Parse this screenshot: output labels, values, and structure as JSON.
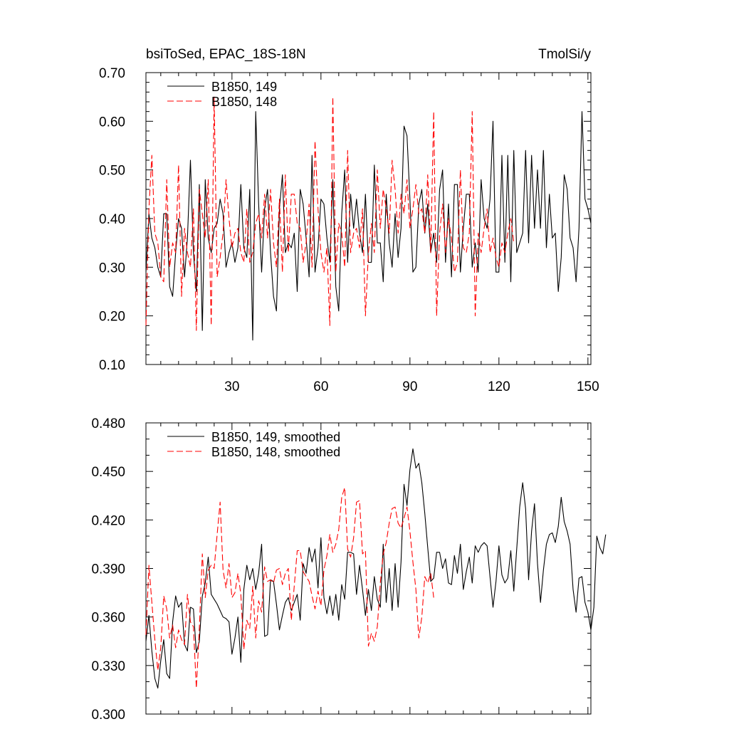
{
  "page": {
    "title_left": "bsiToSed, EPAC_18S-18N",
    "title_right": "TmolSi/y"
  },
  "colors": {
    "series1": "#000000",
    "series2": "#ff0000"
  },
  "chart_data": [
    {
      "type": "line",
      "title": "bsiToSed, EPAC_18S-18N",
      "units_label": "TmolSi/y",
      "xlabel": "",
      "ylabel": "",
      "xlim": [
        1,
        151
      ],
      "ylim": [
        0.1,
        0.7
      ],
      "x_ticks": [
        30,
        60,
        90,
        120,
        150
      ],
      "x_tick_labels": [
        "30",
        "60",
        "90",
        "120",
        "150"
      ],
      "y_ticks": [
        0.1,
        0.2,
        0.3,
        0.4,
        0.5,
        0.6,
        0.7
      ],
      "y_tick_labels": [
        "0.10",
        "0.20",
        "0.30",
        "0.40",
        "0.50",
        "0.60",
        "0.70"
      ],
      "legend": "top-left",
      "series": [
        {
          "name": "B1850, 149",
          "color": "#000000",
          "dash": "solid",
          "x_start": 1,
          "values": [
            0.29,
            0.41,
            0.36,
            0.34,
            0.3,
            0.28,
            0.41,
            0.41,
            0.26,
            0.24,
            0.33,
            0.4,
            0.38,
            0.28,
            0.36,
            0.52,
            0.33,
            0.25,
            0.47,
            0.17,
            0.48,
            0.36,
            0.33,
            0.38,
            0.39,
            0.44,
            0.41,
            0.3,
            0.33,
            0.35,
            0.31,
            0.34,
            0.47,
            0.34,
            0.32,
            0.46,
            0.15,
            0.62,
            0.43,
            0.29,
            0.42,
            0.46,
            0.33,
            0.24,
            0.21,
            0.42,
            0.49,
            0.33,
            0.35,
            0.34,
            0.37,
            0.25,
            0.46,
            0.43,
            0.36,
            0.28,
            0.53,
            0.29,
            0.34,
            0.44,
            0.43,
            0.36,
            0.31,
            0.48,
            0.26,
            0.21,
            0.41,
            0.5,
            0.31,
            0.45,
            0.38,
            0.44,
            0.37,
            0.33,
            0.45,
            0.31,
            0.31,
            0.51,
            0.35,
            0.35,
            0.27,
            0.45,
            0.35,
            0.3,
            0.41,
            0.32,
            0.38,
            0.59,
            0.57,
            0.44,
            0.29,
            0.3,
            0.43,
            0.46,
            0.37,
            0.43,
            0.33,
            0.37,
            0.31,
            0.46,
            0.5,
            0.31,
            0.43,
            0.28,
            0.47,
            0.47,
            0.29,
            0.38,
            0.45,
            0.45,
            0.3,
            0.35,
            0.29,
            0.48,
            0.4,
            0.38,
            0.44,
            0.6,
            0.29,
            0.29,
            0.53,
            0.31,
            0.53,
            0.27,
            0.54,
            0.33,
            0.35,
            0.37,
            0.54,
            0.35,
            0.53,
            0.38,
            0.5,
            0.38,
            0.54,
            0.34,
            0.45,
            0.36,
            0.37,
            0.25,
            0.32,
            0.49,
            0.46,
            0.36,
            0.34,
            0.27,
            0.38,
            0.62,
            0.44,
            0.42,
            0.39
          ]
        },
        {
          "name": "B1850, 148",
          "color": "#ff0000",
          "dash": "dashed",
          "x_start": 1,
          "values": [
            0.18,
            0.42,
            0.53,
            0.37,
            0.35,
            0.28,
            0.27,
            0.48,
            0.3,
            0.35,
            0.33,
            0.51,
            0.24,
            0.38,
            0.33,
            0.3,
            0.42,
            0.17,
            0.46,
            0.41,
            0.36,
            0.48,
            0.18,
            0.65,
            0.28,
            0.32,
            0.37,
            0.48,
            0.4,
            0.34,
            0.37,
            0.38,
            0.33,
            0.31,
            0.42,
            0.31,
            0.33,
            0.39,
            0.41,
            0.36,
            0.45,
            0.36,
            0.46,
            0.35,
            0.3,
            0.44,
            0.29,
            0.49,
            0.33,
            0.45,
            0.45,
            0.39,
            0.38,
            0.31,
            0.35,
            0.43,
            0.3,
            0.56,
            0.42,
            0.33,
            0.29,
            0.34,
            0.18,
            0.65,
            0.29,
            0.39,
            0.37,
            0.3,
            0.54,
            0.33,
            0.37,
            0.38,
            0.34,
            0.42,
            0.2,
            0.33,
            0.39,
            0.33,
            0.5,
            0.38,
            0.46,
            0.42,
            0.37,
            0.52,
            0.46,
            0.37,
            0.45,
            0.41,
            0.48,
            0.38,
            0.42,
            0.47,
            0.41,
            0.42,
            0.37,
            0.49,
            0.33,
            0.62,
            0.2,
            0.37,
            0.43,
            0.33,
            0.4,
            0.36,
            0.29,
            0.31,
            0.5,
            0.34,
            0.33,
            0.37,
            0.62,
            0.2,
            0.37,
            0.33,
            0.38,
            0.42,
            0.33,
            0.36,
            0.32,
            0.3,
            0.35,
            0.33,
            0.37,
            0.4,
            0.35
          ]
        }
      ]
    },
    {
      "type": "line",
      "title": "",
      "xlabel": "",
      "ylabel": "",
      "xlim": [
        1,
        151
      ],
      "ylim": [
        0.3,
        0.48
      ],
      "x_ticks": [
        30,
        60,
        90,
        120,
        150
      ],
      "x_tick_labels": [],
      "y_ticks": [
        0.3,
        0.33,
        0.36,
        0.39,
        0.42,
        0.45,
        0.48
      ],
      "y_tick_labels": [
        "0.300",
        "0.330",
        "0.360",
        "0.390",
        "0.420",
        "0.450",
        "0.480"
      ],
      "legend": "top-left",
      "series": [
        {
          "name": "B1850, 149, smoothed",
          "color": "#000000",
          "dash": "solid",
          "x_start": 1,
          "values": [
            0.345,
            0.361,
            0.339,
            0.322,
            0.316,
            0.333,
            0.346,
            0.325,
            0.322,
            0.357,
            0.373,
            0.366,
            0.369,
            0.343,
            0.339,
            0.366,
            0.365,
            0.338,
            0.345,
            0.373,
            0.381,
            0.397,
            0.374,
            0.371,
            0.368,
            0.364,
            0.36,
            0.359,
            0.357,
            0.337,
            0.347,
            0.36,
            0.332,
            0.377,
            0.392,
            0.383,
            0.39,
            0.377,
            0.387,
            0.405,
            0.348,
            0.349,
            0.383,
            0.382,
            0.368,
            0.352,
            0.361,
            0.369,
            0.372,
            0.364,
            0.369,
            0.374,
            0.358,
            0.393,
            0.387,
            0.403,
            0.394,
            0.402,
            0.378,
            0.409,
            0.372,
            0.362,
            0.373,
            0.361,
            0.374,
            0.358,
            0.38,
            0.371,
            0.4,
            0.4,
            0.399,
            0.374,
            0.392,
            0.377,
            0.361,
            0.377,
            0.364,
            0.385,
            0.371,
            0.366,
            0.405,
            0.369,
            0.39,
            0.364,
            0.393,
            0.366,
            0.394,
            0.442,
            0.429,
            0.451,
            0.464,
            0.452,
            0.455,
            0.443,
            0.424,
            0.403,
            0.382,
            0.384,
            0.4,
            0.4,
            0.39,
            0.396,
            0.381,
            0.38,
            0.398,
            0.387,
            0.405,
            0.377,
            0.388,
            0.397,
            0.381,
            0.404,
            0.4,
            0.404,
            0.406,
            0.404,
            0.385,
            0.366,
            0.382,
            0.404,
            0.386,
            0.381,
            0.384,
            0.401,
            0.376,
            0.402,
            0.428,
            0.443,
            0.427,
            0.383,
            0.413,
            0.43,
            0.393,
            0.369,
            0.389,
            0.405,
            0.411,
            0.412,
            0.406,
            0.416,
            0.434,
            0.419,
            0.413,
            0.405,
            0.377,
            0.363,
            0.384,
            0.385,
            0.369,
            0.363,
            0.352,
            0.366,
            0.41,
            0.403,
            0.399,
            0.411
          ]
        },
        {
          "name": "B1850, 148, smoothed",
          "color": "#ff0000",
          "dash": "dashed",
          "x_start": 1,
          "values": [
            0.349,
            0.392,
            0.369,
            0.346,
            0.327,
            0.341,
            0.373,
            0.365,
            0.347,
            0.355,
            0.341,
            0.352,
            0.346,
            0.343,
            0.374,
            0.357,
            0.354,
            0.316,
            0.353,
            0.399,
            0.372,
            0.389,
            0.392,
            0.39,
            0.411,
            0.431,
            0.389,
            0.378,
            0.393,
            0.372,
            0.375,
            0.387,
            0.374,
            0.34,
            0.358,
            0.353,
            0.379,
            0.347,
            0.37,
            0.363,
            0.391,
            0.382,
            0.383,
            0.381,
            0.389,
            0.39,
            0.38,
            0.387,
            0.39,
            0.358,
            0.379,
            0.401,
            0.401,
            0.388,
            0.385,
            0.382,
            0.373,
            0.365,
            0.376,
            0.367,
            0.389,
            0.398,
            0.411,
            0.4,
            0.405,
            0.414,
            0.434,
            0.44,
            0.402,
            0.397,
            0.409,
            0.431,
            0.432,
            0.399,
            0.401,
            0.342,
            0.35,
            0.345,
            0.354,
            0.381,
            0.399,
            0.406,
            0.418,
            0.427,
            0.428,
            0.418,
            0.415,
            0.421,
            0.428,
            0.413,
            0.394,
            0.377,
            0.347,
            0.36,
            0.385,
            0.381,
            0.387,
            0.372
          ]
        }
      ]
    }
  ]
}
